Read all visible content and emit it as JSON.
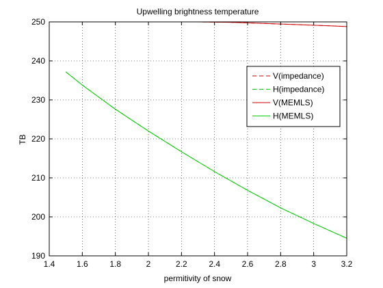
{
  "chart_data": {
    "type": "line",
    "title": "Upwelling brightness temperature",
    "xlabel": "permitivity of snow",
    "ylabel": "TB",
    "xlim": [
      1.4,
      3.2
    ],
    "ylim": [
      190,
      250
    ],
    "xticks": [
      "1.4",
      "1.6",
      "1.8",
      "2",
      "2.2",
      "2.4",
      "2.6",
      "2.8",
      "3",
      "3.2"
    ],
    "yticks": [
      "190",
      "200",
      "210",
      "220",
      "230",
      "240",
      "250"
    ],
    "grid": true,
    "legend_position": "upper-right",
    "series": [
      {
        "name": "V(impedance)",
        "color": "#cc0000",
        "style": "dashed",
        "x": [
          1.5,
          1.7,
          1.9,
          2.1,
          2.3,
          2.5,
          2.7,
          2.9,
          3.1,
          3.2
        ],
        "y": [
          250.0,
          250.0,
          250.0,
          250.0,
          250.0,
          249.9,
          249.6,
          249.3,
          249.0,
          248.8
        ]
      },
      {
        "name": "H(impedance)",
        "color": "#00cc00",
        "style": "dashed",
        "x": [
          1.5,
          1.6,
          1.8,
          2.0,
          2.2,
          2.4,
          2.6,
          2.8,
          3.0,
          3.2
        ],
        "y": [
          237.2,
          233.8,
          227.6,
          222.0,
          216.7,
          211.6,
          206.8,
          202.3,
          198.3,
          194.5
        ]
      },
      {
        "name": "V(MEMLS)",
        "color": "#cc0000",
        "style": "solid",
        "x": [
          1.5,
          1.7,
          1.9,
          2.1,
          2.3,
          2.5,
          2.7,
          2.9,
          3.1,
          3.2
        ],
        "y": [
          250.0,
          250.0,
          250.0,
          250.0,
          250.0,
          249.9,
          249.6,
          249.3,
          249.0,
          248.8
        ]
      },
      {
        "name": "H(MEMLS)",
        "color": "#00cc00",
        "style": "solid",
        "x": [
          1.5,
          1.6,
          1.8,
          2.0,
          2.2,
          2.4,
          2.6,
          2.8,
          3.0,
          3.2
        ],
        "y": [
          237.2,
          233.8,
          227.6,
          222.0,
          216.7,
          211.6,
          206.8,
          202.3,
          198.3,
          194.5
        ]
      }
    ]
  }
}
